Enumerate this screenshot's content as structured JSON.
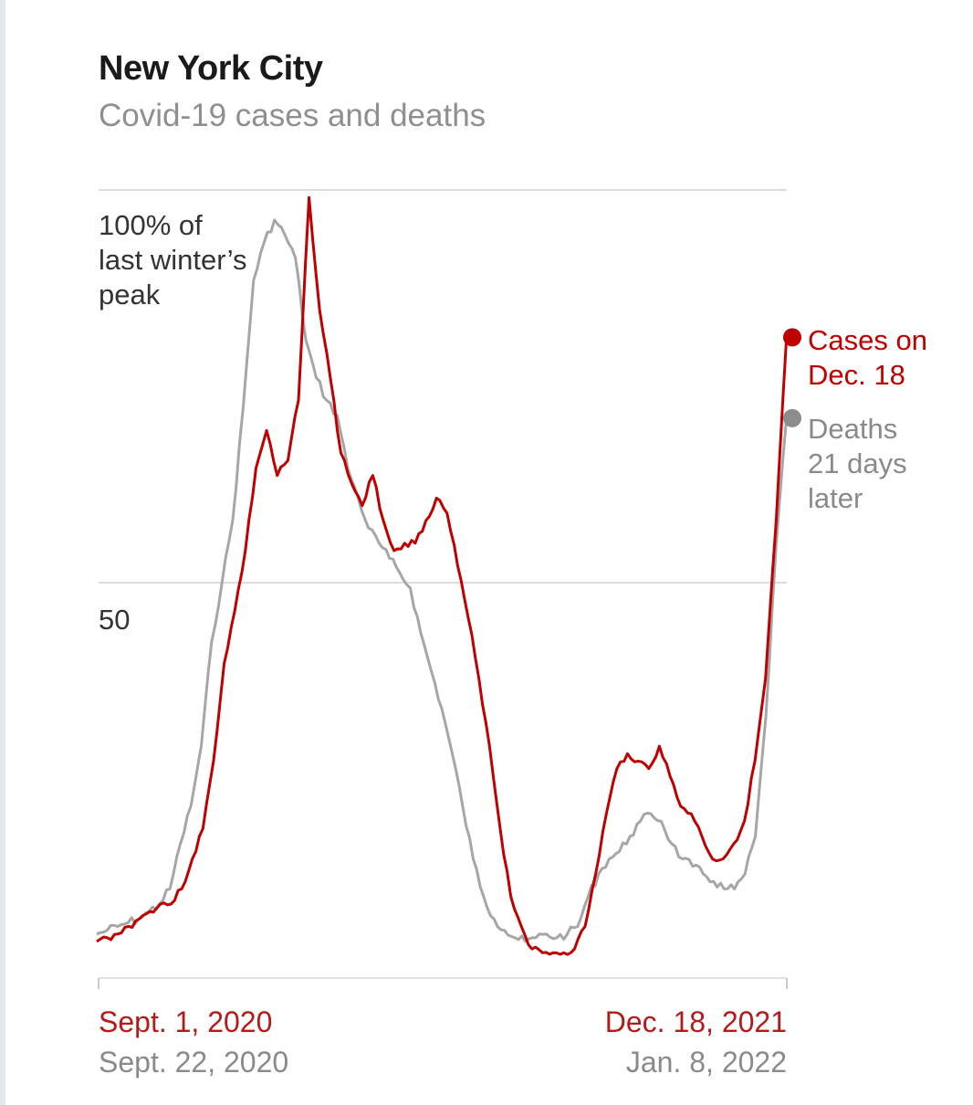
{
  "title": "New York City",
  "subtitle": "Covid-19 cases and deaths",
  "chart_data": {
    "type": "line",
    "title": "New York City",
    "subtitle": "Covid-19 cases and deaths",
    "ylabel_top": [
      "100% of",
      "last winter’s",
      "peak"
    ],
    "ytick_mid": "50",
    "ylim": [
      0,
      100
    ],
    "y_unit": "% of last winter’s peak",
    "x_labels": {
      "cases_start": "Sept. 1, 2020",
      "cases_end": "Dec. 18, 2021",
      "deaths_start": "Sept. 22, 2020",
      "deaths_end": "Jan. 8, 2022"
    },
    "colors": {
      "cases": "#c00000",
      "deaths": "#a6a6a6",
      "grid": "#dddddd"
    },
    "series": [
      {
        "name": "Cases",
        "label": [
          "Cases on",
          "Dec. 18"
        ],
        "end_value": 81,
        "values": [
          0,
          0.5,
          1,
          2,
          3,
          4,
          5,
          5,
          7,
          11,
          15,
          24,
          37,
          44,
          52,
          63,
          68,
          62,
          64,
          72,
          99,
          84,
          75,
          65,
          61,
          58,
          62,
          56,
          52,
          53,
          53,
          56,
          59,
          57,
          50,
          43,
          35,
          26,
          15,
          6,
          2,
          -1,
          -1.5,
          -1.5,
          -1.5,
          -1,
          2,
          9,
          17,
          23,
          25,
          24,
          23,
          26,
          22,
          18,
          17,
          14,
          11,
          11,
          13,
          16,
          24,
          35,
          56,
          81
        ]
      },
      {
        "name": "Deaths",
        "label": [
          "Deaths",
          "21 days",
          "later"
        ],
        "end_value": 70,
        "values": [
          1,
          1.5,
          2,
          2.5,
          3,
          4,
          5,
          7,
          13,
          18,
          26,
          40,
          48,
          56,
          71,
          88,
          93,
          96,
          94,
          91,
          80,
          75,
          72,
          70,
          63,
          59,
          55,
          53,
          51,
          49,
          47,
          41,
          36,
          31,
          25,
          18,
          11,
          6,
          3,
          1.5,
          0.5,
          0,
          0.5,
          1,
          0.5,
          1,
          2,
          6,
          9,
          11,
          12,
          14,
          16,
          17,
          16,
          13,
          11,
          10,
          9,
          8,
          7,
          7,
          9,
          14,
          30,
          53,
          70
        ]
      }
    ]
  }
}
